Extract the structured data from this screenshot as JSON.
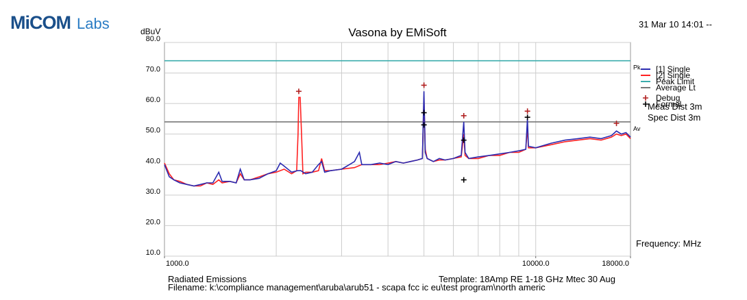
{
  "logo": [
    "MiCOM",
    "Labs"
  ],
  "timestamp": "31 Mar 10 14:01 --",
  "meas_dist": "Meas Dist 3m",
  "spec_dist": "Spec Dist 3m",
  "footer": {
    "left": "Radiated Emissions",
    "template": "Template: 18Amp RE 1-18 GHz Mtec 30 Aug",
    "filename": "Filename: k:\\compliance management\\aruba\\arub51 - scapa fcc ic eu\\test program\\north americ"
  },
  "chart_data": {
    "type": "line",
    "title": "Vasona by EMiSoft",
    "ylabel": "dBuV",
    "xlabel": "Frequency: MHz",
    "xscale": "log",
    "grid": true,
    "xlim": [
      1000,
      18000
    ],
    "ylim": [
      10,
      80
    ],
    "xticks": [
      {
        "value": 1000,
        "label": "1000.0"
      },
      {
        "value": 10000,
        "label": "10000.0"
      },
      {
        "value": 18000,
        "label": "18000.0"
      }
    ],
    "xgrid": [
      2000,
      3000,
      4000,
      5000,
      6000,
      7000,
      8000,
      9000,
      10000
    ],
    "yticks": [
      {
        "value": 10,
        "label": "10.0"
      },
      {
        "value": 20,
        "label": "20.0"
      },
      {
        "value": 30,
        "label": "30.0"
      },
      {
        "value": 40,
        "label": "40.0"
      },
      {
        "value": 50,
        "label": "50.0"
      },
      {
        "value": 60,
        "label": "60.0"
      },
      {
        "value": 70,
        "label": "70.0"
      },
      {
        "value": 80,
        "label": "80.0"
      }
    ],
    "limit_tags": [
      {
        "label": "Pk",
        "value": 74
      },
      {
        "label": "Av",
        "value": 54
      }
    ],
    "series": [
      {
        "name": "[1] Single",
        "color": "#2a2ab0",
        "x": [
          1000,
          1030,
          1060,
          1100,
          1150,
          1200,
          1250,
          1300,
          1350,
          1400,
          1430,
          1500,
          1560,
          1600,
          1640,
          1700,
          1800,
          1900,
          2000,
          2050,
          2100,
          2200,
          2280,
          2330,
          2400,
          2500,
          2600,
          2650,
          2700,
          2800,
          3000,
          3100,
          3250,
          3350,
          3400,
          3600,
          3800,
          4000,
          4200,
          4400,
          4600,
          4800,
          4950,
          5000,
          5040,
          5100,
          5300,
          5500,
          5700,
          6000,
          6300,
          6400,
          6450,
          6600,
          7000,
          7500,
          8000,
          8500,
          9000,
          9400,
          9500,
          9560,
          10000,
          11000,
          12000,
          13000,
          14000,
          15000,
          16000,
          16500,
          17000,
          17500,
          18000
        ],
        "values": [
          40,
          36,
          35,
          34,
          33.5,
          33,
          33.5,
          34,
          34,
          37.5,
          34.5,
          34.5,
          34,
          38.5,
          35,
          35,
          35.5,
          37,
          38,
          40.5,
          39.5,
          37.5,
          38,
          38,
          37,
          37.5,
          40,
          41,
          37.5,
          38,
          38.5,
          39.5,
          41,
          44,
          40,
          40,
          40.5,
          40,
          41,
          40.5,
          41,
          41.5,
          42,
          64,
          44,
          42,
          41,
          42,
          41.5,
          42,
          43,
          54,
          44,
          42,
          42.5,
          43,
          43.5,
          44,
          44.5,
          45,
          55,
          46,
          45.5,
          47,
          48,
          48.5,
          49,
          48.5,
          49.5,
          51,
          50,
          50.5,
          49
        ]
      },
      {
        "name": "[2] Single",
        "color": "#ff2020",
        "x": [
          1000,
          1030,
          1060,
          1100,
          1150,
          1200,
          1250,
          1300,
          1350,
          1400,
          1430,
          1500,
          1560,
          1600,
          1640,
          1700,
          1800,
          1900,
          2000,
          2100,
          2200,
          2270,
          2290,
          2300,
          2320,
          2340,
          2360,
          2400,
          2500,
          2600,
          2650,
          2700,
          2800,
          3000,
          3250,
          3400,
          3600,
          3800,
          4000,
          4200,
          4400,
          4600,
          4800,
          4950,
          5000,
          5040,
          5100,
          5300,
          5500,
          5700,
          6000,
          6300,
          6400,
          6450,
          6600,
          7000,
          7500,
          8000,
          8500,
          9000,
          9400,
          9500,
          9560,
          10000,
          11000,
          12000,
          13000,
          14000,
          15000,
          16000,
          16500,
          17000,
          17500,
          18000
        ],
        "values": [
          40.5,
          37,
          35,
          34.5,
          33.5,
          33,
          33,
          34,
          33.5,
          35,
          34,
          34.5,
          34,
          37,
          35,
          35,
          36,
          37,
          37.5,
          38.5,
          37,
          38,
          50,
          62,
          62,
          50,
          37,
          37.5,
          37.5,
          38,
          42,
          38,
          38,
          38.5,
          39,
          40,
          40,
          40,
          40.5,
          41,
          40.5,
          41,
          41.5,
          42,
          62,
          45,
          42,
          41,
          41.5,
          41.5,
          42,
          42.5,
          50,
          43,
          42,
          42,
          43,
          43,
          44,
          44,
          45,
          52,
          45.5,
          45.5,
          46.5,
          47.5,
          48,
          48.5,
          48,
          49,
          50,
          49.5,
          50,
          48.5
        ]
      },
      {
        "name": "Peak Limit",
        "color": "#3aacac",
        "x": [
          1000,
          18000
        ],
        "values": [
          74,
          74
        ]
      },
      {
        "name": "Average Lt",
        "color": "#777777",
        "x": [
          1000,
          18000
        ],
        "values": [
          54,
          54
        ]
      }
    ],
    "markers": [
      {
        "name": "Debug",
        "color": "#b02020",
        "x": [
          2300,
          5000,
          6400,
          9500,
          16500
        ],
        "values": [
          64,
          66,
          56,
          57.5,
          53.5
        ]
      },
      {
        "name": "Formal",
        "color": "#000000",
        "x": [
          5000,
          5000,
          6400,
          6400,
          9500
        ],
        "values": [
          57,
          53,
          48,
          35,
          55.5
        ]
      }
    ]
  }
}
